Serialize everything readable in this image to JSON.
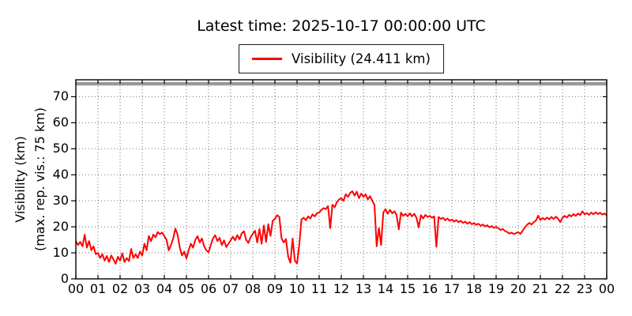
{
  "title": "Latest time: 2025-10-17 00:00:00 UTC",
  "legend": {
    "label": "Visibility (24.411 km)",
    "line_color": "#ff0000",
    "position": "top-center"
  },
  "y_axis": {
    "label_line1": "Visibility (km)",
    "label_line2": "(max. rep. vis.: 75 km)",
    "tick_values": [
      0,
      10,
      20,
      30,
      40,
      50,
      60,
      70
    ],
    "max_reportable_km": 75,
    "max_reportable_band_color": "#999999"
  },
  "x_axis": {
    "tick_labels": [
      "00",
      "01",
      "02",
      "03",
      "04",
      "05",
      "06",
      "07",
      "08",
      "09",
      "10",
      "11",
      "12",
      "13",
      "14",
      "15",
      "16",
      "17",
      "18",
      "19",
      "20",
      "21",
      "22",
      "23",
      "00"
    ]
  },
  "chart_data": {
    "type": "line",
    "title": "Latest time: 2025-10-17 00:00:00 UTC",
    "ylabel": "Visibility (km) (max. rep. vis.: 75 km)",
    "xlabel": "",
    "grid": true,
    "grid_style": "dotted",
    "legend_position": "top-center",
    "xlim": [
      0,
      24
    ],
    "ylim": [
      0,
      76.5
    ],
    "ytick_values": [
      0,
      10,
      20,
      30,
      40,
      50,
      60,
      70
    ],
    "xtick_labels": [
      "00",
      "01",
      "02",
      "03",
      "04",
      "05",
      "06",
      "07",
      "08",
      "09",
      "10",
      "11",
      "12",
      "13",
      "14",
      "15",
      "16",
      "17",
      "18",
      "19",
      "20",
      "21",
      "22",
      "23",
      "00"
    ],
    "max_reportable_line_km": 75,
    "latest_value_km": 24.411,
    "series": [
      {
        "name": "Visibility (24.411 km)",
        "color": "#ff0000",
        "x_hours_start": 0.0,
        "x_hours_step": 0.1,
        "values": [
          14.5,
          13.0,
          14.2,
          12.5,
          17.0,
          12.0,
          14.5,
          11.0,
          12.5,
          9.5,
          10.0,
          8.0,
          9.5,
          7.0,
          8.8,
          6.5,
          9.0,
          7.5,
          5.8,
          8.5,
          7.0,
          9.8,
          6.5,
          8.0,
          6.8,
          11.5,
          8.0,
          9.5,
          8.0,
          10.5,
          9.0,
          13.5,
          11.0,
          16.5,
          14.5,
          17.0,
          16.0,
          18.0,
          17.2,
          17.8,
          16.5,
          15.0,
          11.0,
          13.0,
          15.5,
          19.3,
          17.0,
          12.0,
          9.0,
          10.5,
          7.8,
          11.0,
          13.5,
          12.0,
          15.0,
          16.4,
          14.0,
          15.5,
          12.5,
          11.0,
          10.2,
          13.0,
          15.5,
          16.8,
          14.5,
          15.8,
          13.0,
          14.8,
          12.2,
          13.5,
          14.8,
          16.2,
          14.8,
          16.8,
          15.2,
          17.5,
          18.3,
          15.0,
          13.8,
          16.0,
          17.3,
          18.5,
          14.0,
          19.2,
          13.5,
          20.5,
          14.2,
          21.0,
          16.5,
          22.3,
          23.0,
          24.5,
          23.8,
          15.5,
          14.0,
          15.3,
          8.5,
          6.2,
          15.5,
          7.0,
          5.9,
          13.0,
          22.8,
          23.5,
          22.5,
          24.0,
          23.2,
          24.8,
          24.0,
          25.2,
          25.5,
          26.5,
          27.2,
          26.8,
          28.0,
          19.5,
          28.5,
          27.5,
          29.5,
          30.5,
          31.0,
          30.0,
          32.5,
          31.5,
          33.0,
          33.7,
          32.0,
          33.5,
          31.0,
          32.8,
          31.5,
          32.5,
          30.5,
          31.8,
          30.0,
          28.5,
          12.5,
          19.5,
          13.0,
          25.5,
          26.8,
          25.0,
          26.5,
          25.2,
          26.0,
          24.5,
          19.0,
          25.5,
          24.2,
          25.0,
          24.0,
          25.2,
          24.0,
          25.0,
          23.5,
          19.8,
          24.5,
          23.2,
          24.6,
          23.8,
          24.2,
          23.5,
          24.0,
          12.3,
          23.8,
          23.0,
          23.5,
          22.5,
          23.2,
          22.3,
          22.8,
          22.0,
          22.6,
          21.8,
          22.3,
          21.5,
          22.0,
          21.2,
          21.8,
          21.0,
          21.4,
          20.8,
          21.2,
          20.4,
          20.9,
          20.2,
          20.6,
          19.8,
          20.3,
          19.6,
          20.0,
          19.4,
          18.8,
          19.2,
          18.4,
          18.0,
          17.4,
          17.8,
          17.2,
          17.6,
          17.9,
          17.3,
          18.5,
          19.8,
          20.8,
          21.5,
          20.9,
          21.8,
          22.4,
          24.3,
          22.6,
          23.4,
          22.8,
          23.6,
          22.9,
          23.8,
          23.0,
          23.9,
          23.2,
          21.8,
          23.5,
          24.2,
          23.6,
          24.6,
          24.0,
          24.9,
          24.2,
          25.1,
          24.5,
          26.0,
          24.8,
          25.3,
          24.6,
          25.5,
          24.8,
          25.6,
          24.9,
          25.4,
          24.7,
          25.1,
          24.411
        ]
      }
    ]
  }
}
